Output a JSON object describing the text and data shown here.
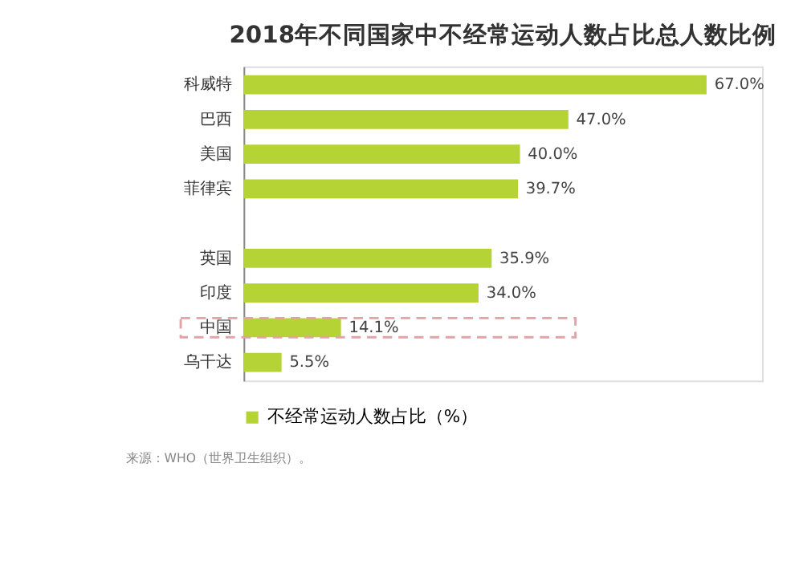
{
  "chart_data": {
    "type": "bar",
    "orientation": "horizontal",
    "title": "2018年不同国家中不经常运动人数占比总人数比例",
    "categories": [
      "科威特",
      "巴西",
      "美国",
      "菲律宾",
      null,
      "英国",
      "印度",
      "中国",
      "乌干达"
    ],
    "series": [
      {
        "name": "不经常运动人数占比（%）",
        "color": "#b5d334",
        "values": [
          67.0,
          47.0,
          40.0,
          39.7,
          null,
          35.9,
          34.0,
          14.1,
          5.5
        ],
        "value_labels": [
          "67.0%",
          "47.0%",
          "40.0%",
          "39.7%",
          null,
          "35.9%",
          "34.0%",
          "14.1%",
          "5.5%"
        ]
      }
    ],
    "legend": "bottom",
    "annotations": [
      "来源：WHO（世界卫生组织）。"
    ]
  }
}
